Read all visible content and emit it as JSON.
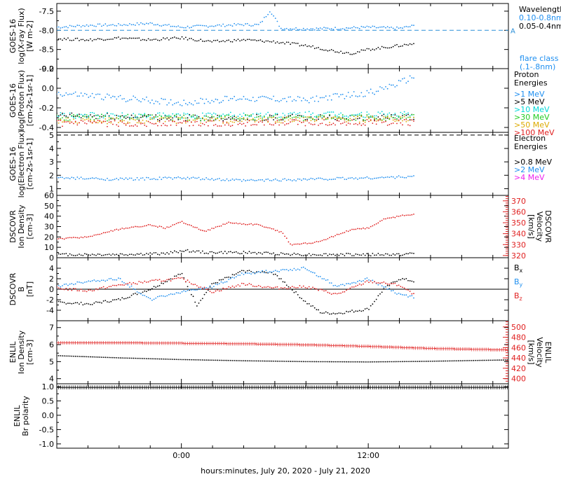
{
  "figure": {
    "xaxis_label": "hours:minutes, July 20, 2020 - July 21, 2020",
    "x_ticks": [
      {
        "hour": 0,
        "label": "0:00"
      },
      {
        "hour": 12,
        "label": "12:00"
      }
    ],
    "x_range_hours": [
      -8,
      21
    ]
  },
  "chart_data": [
    {
      "id": "xray",
      "type": "scatter",
      "ylabel_lines": [
        "GOES-16",
        "log(X-ray Flux)",
        "[W m-2]"
      ],
      "yscale": "log10",
      "ylim": [
        -9.0,
        -7.3
      ],
      "yticks": [
        -7.5,
        -8.0,
        -8.5,
        -9.0
      ],
      "ytick_labels": [
        "-7.5",
        "-8.0",
        "-8.5",
        "-9.0"
      ],
      "reference_line": {
        "y": -8.0,
        "label": "A",
        "color": "#2a8fd8"
      },
      "legend_title": "Wavelength",
      "legend_note": [
        "flare class",
        "(.1-.8nm)"
      ],
      "series": [
        {
          "name": "0.10-0.8nm",
          "color": "#1f8ff0",
          "x": [
            -8,
            -6,
            -4,
            -2,
            0,
            2,
            4,
            5,
            5.7,
            6.4,
            8,
            10,
            12,
            14,
            15
          ],
          "y": [
            -7.92,
            -7.87,
            -7.86,
            -7.82,
            -7.92,
            -7.88,
            -7.85,
            -7.86,
            -7.48,
            -7.95,
            -7.96,
            -7.95,
            -7.92,
            -7.95,
            -7.88
          ]
        },
        {
          "name": "0.05-0.4nm",
          "color": "#000000",
          "x": [
            -8,
            -6,
            -4,
            -2,
            0,
            2,
            4,
            6,
            8,
            10,
            11,
            12,
            13,
            14,
            15
          ],
          "y": [
            -8.22,
            -8.25,
            -8.2,
            -8.25,
            -8.2,
            -8.3,
            -8.25,
            -8.3,
            -8.4,
            -8.55,
            -8.6,
            -8.5,
            -8.45,
            -8.4,
            -8.35
          ]
        }
      ]
    },
    {
      "id": "proton",
      "type": "scatter",
      "ylabel_lines": [
        "GOES-16",
        "log(Proton Flux)",
        "[cm-2s-1sr-1]"
      ],
      "ylim": [
        -0.45,
        0.2
      ],
      "yticks": [
        0.2,
        0.0,
        -0.2,
        -0.4
      ],
      "ytick_labels": [
        "0.2",
        "0.0",
        "-0.2",
        "-0.4"
      ],
      "legend_title": "Proton Energies",
      "series": [
        {
          "name": ">1 MeV",
          "color": "#1f8ff0",
          "x": [
            -8,
            -4,
            0,
            4,
            8,
            12,
            14,
            15
          ],
          "y": [
            -0.05,
            -0.1,
            -0.15,
            -0.1,
            -0.12,
            -0.05,
            0.05,
            0.12
          ]
        },
        {
          "name": ">5 MeV",
          "color": "#000000",
          "x": [
            -8,
            0,
            8,
            15
          ],
          "y": [
            -0.28,
            -0.3,
            -0.3,
            -0.3
          ]
        },
        {
          "name": ">10 MeV",
          "color": "#00d8d8",
          "x": [
            -8,
            0,
            8,
            15
          ],
          "y": [
            -0.28,
            -0.28,
            -0.27,
            -0.27
          ]
        },
        {
          "name": ">30 MeV",
          "color": "#22cc22",
          "x": [
            -8,
            0,
            8,
            15
          ],
          "y": [
            -0.3,
            -0.3,
            -0.3,
            -0.3
          ]
        },
        {
          "name": ">50 MeV",
          "color": "#ddaa00",
          "x": [
            -8,
            0,
            8,
            15
          ],
          "y": [
            -0.33,
            -0.33,
            -0.32,
            -0.32
          ]
        },
        {
          "name": ">100 MeV",
          "color": "#e02020",
          "x": [
            -8,
            0,
            8,
            15
          ],
          "y": [
            -0.36,
            -0.36,
            -0.35,
            -0.35
          ]
        }
      ]
    },
    {
      "id": "electron",
      "type": "scatter",
      "ylabel_lines": [
        "GOES-16",
        "log(Electron Flux)",
        "[cm-2s-1sr-1]"
      ],
      "ylim": [
        0.5,
        5.2
      ],
      "yticks": [
        1,
        2,
        3,
        4,
        5
      ],
      "ytick_labels": [
        "1",
        "2",
        "3",
        "4",
        "5"
      ],
      "reference_line": {
        "y": 5.0,
        "label": "",
        "color": "#000000"
      },
      "legend_title": "Electron Energies",
      "series": [
        {
          "name": ">0.8 MeV",
          "color": "#000000",
          "x": [],
          "y": []
        },
        {
          "name": ">2 MeV",
          "color": "#1f8ff0",
          "x": [
            -8,
            -4,
            0,
            4,
            8,
            12,
            15
          ],
          "y": [
            1.8,
            1.7,
            1.8,
            1.6,
            1.7,
            1.8,
            1.9
          ]
        },
        {
          "name": ">4 MeV",
          "color": "#ee22ee",
          "x": [],
          "y": []
        }
      ]
    },
    {
      "id": "dscovr_density",
      "type": "scatter",
      "ylabel_lines": [
        "DSCOVR",
        "Ion Density",
        "[cm-3]"
      ],
      "ylim": [
        0,
        60
      ],
      "yticks": [
        0,
        10,
        20,
        30,
        40,
        50,
        60
      ],
      "ytick_labels": [
        "0",
        "10",
        "20",
        "30",
        "40",
        "50",
        "60"
      ],
      "y2label_lines": [
        "DSCOVR",
        "Velocity",
        "[km/s]"
      ],
      "y2lim": [
        318,
        375
      ],
      "y2ticks": [
        320,
        330,
        340,
        350,
        360,
        370
      ],
      "y2tick_labels": [
        "320",
        "330",
        "340",
        "350",
        "360",
        "370"
      ],
      "series": [
        {
          "name": "Ion Density",
          "color": "#000000",
          "axis": "left",
          "x": [
            -8,
            -4,
            -1,
            0.2,
            1.5,
            4,
            6,
            8,
            10,
            12,
            14,
            15
          ],
          "y": [
            3,
            3,
            4,
            7,
            5,
            5,
            4,
            3,
            3,
            3,
            3,
            4
          ]
        },
        {
          "name": "Velocity",
          "color": "#e02020",
          "axis": "right",
          "x": [
            -8,
            -6,
            -4,
            -2,
            -1,
            0,
            1.5,
            3,
            5,
            6.5,
            7,
            8,
            9,
            10,
            11,
            12,
            13,
            14,
            15
          ],
          "y": [
            335,
            337,
            344,
            348,
            345,
            351,
            342,
            350,
            348,
            341,
            330,
            331,
            333,
            339,
            344,
            345,
            353,
            356,
            358
          ]
        }
      ]
    },
    {
      "id": "dscovr_b",
      "type": "scatter",
      "ylabel_lines": [
        "DSCOVR",
        "B",
        "[nT]"
      ],
      "ylim": [
        -6,
        6
      ],
      "yticks": [
        -4,
        -2,
        0,
        2,
        4
      ],
      "ytick_labels": [
        "-4",
        "-2",
        "0",
        "2",
        "4"
      ],
      "zero_line": true,
      "series": [
        {
          "name": "Bx",
          "color": "#000000",
          "x": [
            -8,
            -6,
            -4,
            -2,
            0,
            1,
            2,
            4,
            6,
            8,
            9,
            10,
            12,
            13,
            14,
            15
          ],
          "y": [
            -2.5,
            -2.8,
            -2.0,
            0,
            3.0,
            -3.0,
            1.0,
            3.5,
            3.0,
            -2.5,
            -4.5,
            -4.6,
            -3.8,
            0,
            2,
            1.5
          ]
        },
        {
          "name": "By",
          "color": "#1f8ff0",
          "x": [
            -8,
            -6,
            -4,
            -2,
            0,
            2,
            4,
            6,
            8,
            10,
            12,
            14,
            15
          ],
          "y": [
            0.5,
            1.5,
            2.0,
            -2.0,
            -0.5,
            0.5,
            3.0,
            3.5,
            4.0,
            0.5,
            2.0,
            -1.0,
            -1.5
          ]
        },
        {
          "name": "Bz",
          "color": "#e02020",
          "x": [
            -8,
            -6,
            -4,
            -2,
            0,
            2,
            4,
            6,
            8,
            10,
            12,
            14,
            15
          ],
          "y": [
            0.2,
            -0.3,
            0.8,
            1.5,
            2.0,
            -0.5,
            1.0,
            0.2,
            0.5,
            -1.0,
            1.5,
            0.8,
            -1.2
          ]
        }
      ]
    },
    {
      "id": "enlil_density",
      "type": "scatter",
      "ylabel_lines": [
        "ENLIL",
        "Ion Density",
        "[cm-3]"
      ],
      "ylim": [
        3.7,
        7.4
      ],
      "yticks": [
        4,
        5,
        6,
        7
      ],
      "ytick_labels": [
        "4",
        "5",
        "6",
        "7"
      ],
      "y2label_lines": [
        "ENLIL",
        "Velocity",
        "[km/s]"
      ],
      "y2lim": [
        390,
        512
      ],
      "y2ticks": [
        400,
        420,
        440,
        460,
        480,
        500
      ],
      "y2tick_labels": [
        "400",
        "420",
        "440",
        "460",
        "480",
        "500"
      ],
      "series": [
        {
          "name": "Ion Density",
          "color": "#000000",
          "axis": "left",
          "x": [
            -8,
            -4,
            0,
            4,
            8,
            12,
            16,
            21
          ],
          "y": [
            5.35,
            5.22,
            5.12,
            5.05,
            5.0,
            4.98,
            5.02,
            5.1
          ]
        },
        {
          "name": "Velocity",
          "color": "#e02020",
          "axis": "right",
          "x": [
            -8,
            -4,
            0,
            4,
            8,
            12,
            16,
            21
          ],
          "y": [
            470,
            470,
            469,
            468,
            466,
            463,
            459,
            456
          ]
        }
      ]
    },
    {
      "id": "enlil_polarity",
      "type": "scatter",
      "ylabel_lines": [
        "ENLIL",
        "Br polarity"
      ],
      "ylim": [
        -1.15,
        1.1
      ],
      "yticks": [
        1.0,
        0.5,
        0.0,
        -0.5,
        -1.0
      ],
      "ytick_labels": [
        "1.0",
        "0.5",
        "0.0",
        "-0.5",
        "-1.0"
      ],
      "series": [
        {
          "name": "Br polarity",
          "color": "#000000",
          "x": [
            -8,
            0,
            8,
            16,
            21
          ],
          "y": [
            1.0,
            1.0,
            1.0,
            1.0,
            1.0
          ]
        }
      ]
    }
  ]
}
